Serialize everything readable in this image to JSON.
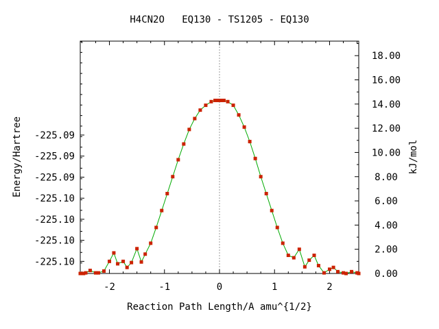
{
  "chart_data": {
    "type": "line",
    "title": "H4CN2O   EQ130 - TS1205 - EQ130",
    "xlabel": "Reaction Path Length/A amu^{1/2}",
    "ylabel": "Energy/Hartree",
    "y2label": "kJ/mol",
    "xlim": [
      -2.53,
      2.53
    ],
    "y2lim": [
      0.0,
      19.2
    ],
    "x_ticks": [
      -2,
      -1,
      0,
      1,
      2
    ],
    "x_tick_labels": [
      "-2",
      "-1",
      "0",
      "1",
      "2"
    ],
    "y_ticks_kj": [
      1.0,
      2.74,
      4.48,
      6.22,
      7.96,
      9.7,
      11.44
    ],
    "y_tick_labels": [
      "-225.10",
      "-225.10",
      "-225.10",
      "-225.10",
      "-225.09",
      "-225.09",
      "-225.09"
    ],
    "y2_ticks": [
      0,
      2,
      4,
      6,
      8,
      10,
      12,
      14,
      16,
      18
    ],
    "y2_tick_labels": [
      "0.00",
      "2.00",
      "4.00",
      "6.00",
      "8.00",
      "10.00",
      "12.00",
      "14.00",
      "16.00",
      "18.00"
    ],
    "ts_marker_x": 0.0,
    "grid": false,
    "legend": "none",
    "line_color": "#00aa00",
    "marker_color": "#cc2200",
    "ts_line_color": "#999999",
    "series": [
      {
        "x": [
          -2.53,
          -2.5,
          -2.47,
          -2.43,
          -2.35,
          -2.25,
          -2.2,
          -2.1,
          -2.0,
          -1.92,
          -1.85,
          -1.75,
          -1.68,
          -1.6,
          -1.5,
          -1.42,
          -1.35,
          -1.25,
          -1.15,
          -1.05,
          -0.95,
          -0.85,
          -0.75,
          -0.65,
          -0.55,
          -0.45,
          -0.35,
          -0.25,
          -0.15,
          -0.08,
          -0.04,
          0.0,
          0.04,
          0.08,
          0.15,
          0.25,
          0.35,
          0.45,
          0.55,
          0.65,
          0.75,
          0.85,
          0.95,
          1.05,
          1.15,
          1.25,
          1.35,
          1.45,
          1.55,
          1.63,
          1.72,
          1.8,
          1.9,
          2.0,
          2.07,
          2.15,
          2.25,
          2.3,
          2.4,
          2.5,
          2.53
        ],
        "y": [
          0.0,
          0.0,
          0.0,
          0.05,
          0.25,
          0.05,
          0.05,
          0.2,
          1.0,
          1.7,
          0.8,
          1.0,
          0.5,
          0.9,
          2.05,
          0.95,
          1.6,
          2.5,
          3.8,
          5.2,
          6.6,
          8.0,
          9.4,
          10.7,
          11.9,
          12.8,
          13.5,
          13.9,
          14.2,
          14.3,
          14.3,
          14.3,
          14.3,
          14.3,
          14.2,
          13.9,
          13.1,
          12.1,
          10.9,
          9.5,
          8.0,
          6.6,
          5.2,
          3.8,
          2.5,
          1.5,
          1.3,
          2.0,
          0.55,
          1.1,
          1.5,
          0.65,
          0.05,
          0.35,
          0.5,
          0.15,
          0.05,
          0.0,
          0.15,
          0.05,
          0.0
        ]
      }
    ]
  }
}
